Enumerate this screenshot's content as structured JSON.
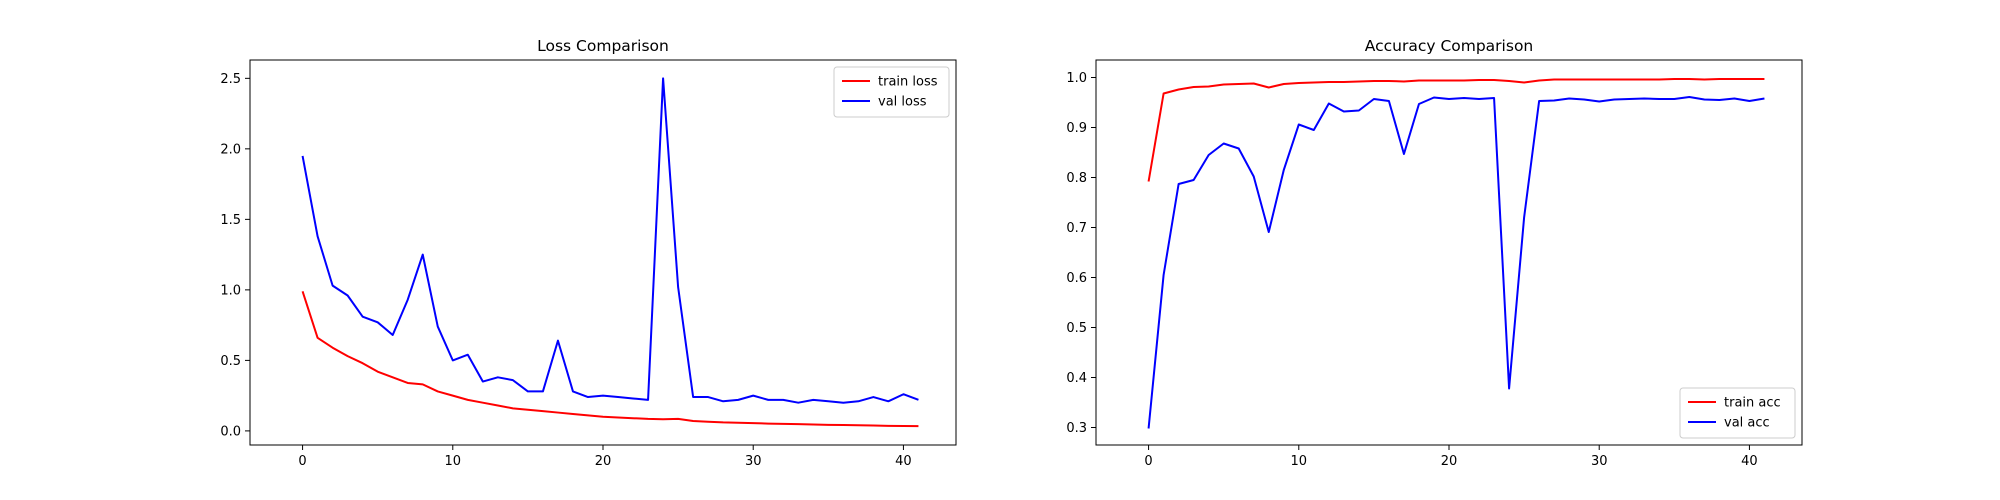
{
  "chart_data": [
    {
      "type": "line",
      "title": "Loss Comparison",
      "xlabel": "",
      "ylabel": "",
      "xlim": [
        -3.5,
        43.5
      ],
      "ylim": [
        -0.1,
        2.63
      ],
      "xticks": [
        0,
        10,
        20,
        30,
        40
      ],
      "yticks": [
        0.0,
        0.5,
        1.0,
        1.5,
        2.0,
        2.5
      ],
      "ytick_format": "1dp",
      "grid": false,
      "legend_position": "top-right",
      "x": [
        0,
        1,
        2,
        3,
        4,
        5,
        6,
        7,
        8,
        9,
        10,
        11,
        12,
        13,
        14,
        15,
        16,
        17,
        18,
        19,
        20,
        21,
        22,
        23,
        24,
        25,
        26,
        27,
        28,
        29,
        30,
        31,
        32,
        33,
        34,
        35,
        36,
        37,
        38,
        39,
        40,
        41
      ],
      "series": [
        {
          "name": "train loss",
          "color": "#ff0000",
          "values": [
            0.99,
            0.66,
            0.59,
            0.53,
            0.48,
            0.42,
            0.38,
            0.34,
            0.33,
            0.28,
            0.25,
            0.22,
            0.2,
            0.18,
            0.16,
            0.15,
            0.14,
            0.13,
            0.12,
            0.11,
            0.1,
            0.095,
            0.09,
            0.085,
            0.083,
            0.085,
            0.07,
            0.065,
            0.06,
            0.058,
            0.055,
            0.052,
            0.05,
            0.048,
            0.045,
            0.043,
            0.042,
            0.04,
            0.038,
            0.036,
            0.035,
            0.034
          ]
        },
        {
          "name": "val loss",
          "color": "#0000ff",
          "values": [
            1.95,
            1.38,
            1.03,
            0.96,
            0.81,
            0.77,
            0.68,
            0.93,
            1.25,
            0.74,
            0.5,
            0.54,
            0.35,
            0.38,
            0.36,
            0.28,
            0.28,
            0.64,
            0.28,
            0.24,
            0.25,
            0.24,
            0.23,
            0.22,
            2.5,
            1.02,
            0.24,
            0.24,
            0.21,
            0.22,
            0.25,
            0.22,
            0.22,
            0.2,
            0.22,
            0.21,
            0.2,
            0.21,
            0.24,
            0.21,
            0.26,
            0.22
          ]
        }
      ]
    },
    {
      "type": "line",
      "title": "Accuracy Comparison",
      "xlabel": "",
      "ylabel": "",
      "xlim": [
        -3.5,
        43.5
      ],
      "ylim": [
        0.265,
        1.035
      ],
      "xticks": [
        0,
        10,
        20,
        30,
        40
      ],
      "yticks": [
        0.3,
        0.4,
        0.5,
        0.6,
        0.7,
        0.8,
        0.9,
        1.0
      ],
      "ytick_format": "1dp",
      "grid": false,
      "legend_position": "bottom-right",
      "x": [
        0,
        1,
        2,
        3,
        4,
        5,
        6,
        7,
        8,
        9,
        10,
        11,
        12,
        13,
        14,
        15,
        16,
        17,
        18,
        19,
        20,
        21,
        22,
        23,
        24,
        25,
        26,
        27,
        28,
        29,
        30,
        31,
        32,
        33,
        34,
        35,
        36,
        37,
        38,
        39,
        40,
        41
      ],
      "series": [
        {
          "name": "train acc",
          "color": "#ff0000",
          "values": [
            0.792,
            0.968,
            0.976,
            0.981,
            0.982,
            0.986,
            0.987,
            0.988,
            0.98,
            0.987,
            0.989,
            0.99,
            0.991,
            0.991,
            0.992,
            0.993,
            0.993,
            0.992,
            0.994,
            0.994,
            0.994,
            0.994,
            0.995,
            0.995,
            0.993,
            0.99,
            0.994,
            0.996,
            0.996,
            0.996,
            0.996,
            0.996,
            0.996,
            0.996,
            0.996,
            0.997,
            0.997,
            0.996,
            0.997,
            0.997,
            0.997,
            0.997
          ]
        },
        {
          "name": "val acc",
          "color": "#0000ff",
          "values": [
            0.298,
            0.605,
            0.787,
            0.795,
            0.845,
            0.868,
            0.858,
            0.802,
            0.691,
            0.815,
            0.906,
            0.895,
            0.948,
            0.932,
            0.934,
            0.957,
            0.953,
            0.847,
            0.947,
            0.96,
            0.957,
            0.959,
            0.957,
            0.959,
            0.378,
            0.72,
            0.953,
            0.954,
            0.958,
            0.956,
            0.952,
            0.956,
            0.957,
            0.958,
            0.957,
            0.957,
            0.961,
            0.956,
            0.955,
            0.958,
            0.953,
            0.958
          ]
        }
      ]
    }
  ]
}
